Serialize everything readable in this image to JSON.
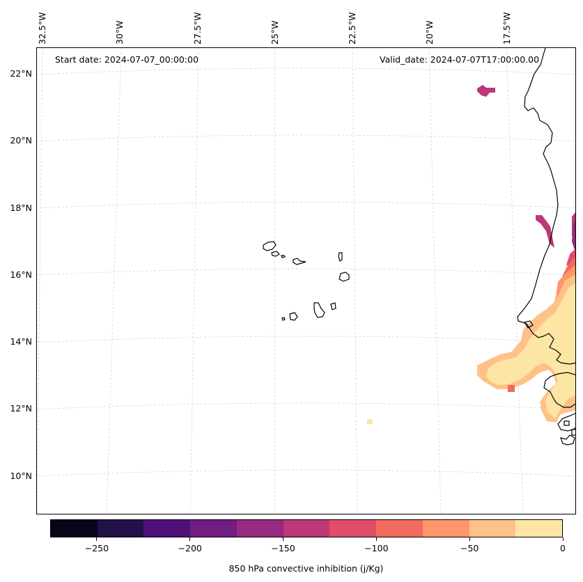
{
  "map": {
    "title_left": "Start date: 2024-07-07_00:00:00",
    "title_right": "Valid_date: 2024-07-07T17:00:00.00",
    "lon_labels": [
      "32.5°W",
      "30°W",
      "27.5°W",
      "25°W",
      "22.5°W",
      "20°W",
      "17.5°W"
    ],
    "lat_labels": [
      "22°N",
      "20°N",
      "18°N",
      "16°N",
      "14°N",
      "12°N",
      "10°N"
    ],
    "variable": "850 hPa convective inhibition",
    "units": "j/Kg",
    "extent": {
      "lon_min": -32.6,
      "lon_max": -16.4,
      "lat_min": 8.9,
      "lat_max": 22.7
    }
  },
  "colorbar": {
    "label": "850 hPa convective inhibition (j/Kg)",
    "levels": [
      -275,
      -250,
      -225,
      -200,
      -175,
      -150,
      -125,
      -100,
      -75,
      -50,
      -25,
      0
    ],
    "tick_labels": [
      "−250",
      "−200",
      "−150",
      "−100",
      "−50",
      "0"
    ],
    "tick_values": [
      -250,
      -200,
      -150,
      -100,
      -50,
      0
    ],
    "colors": [
      "#06051a",
      "#21124a",
      "#4e0f78",
      "#721d81",
      "#962a80",
      "#bc3878",
      "#e04d6b",
      "#f26b5c",
      "#fd9668",
      "#fec288",
      "#fde6a5"
    ]
  }
}
